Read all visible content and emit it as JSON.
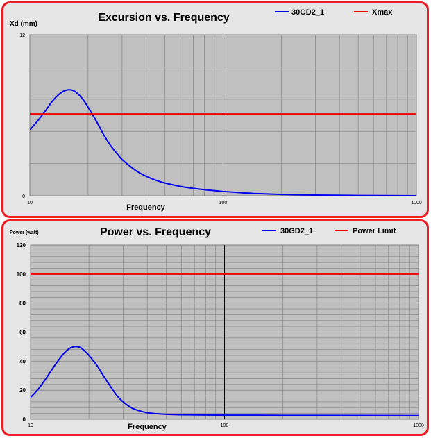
{
  "chart_data": [
    {
      "type": "line",
      "title": "Excursion vs. Frequency",
      "xlabel": "Frequency",
      "ylabel": "Xd (mm)",
      "xscale": "log",
      "xlim": [
        10,
        1000
      ],
      "ylim": [
        0,
        12
      ],
      "xticks": [
        "10",
        "100",
        "1000"
      ],
      "yticks": [
        "0",
        "12"
      ],
      "grid": true,
      "legend_position": "top-right",
      "series": [
        {
          "name": "30GD2_1",
          "color": "#0000ee",
          "x": [
            10,
            11,
            12,
            13,
            14,
            15,
            16,
            17,
            18,
            19,
            20,
            22,
            24,
            26,
            28,
            30,
            33,
            36,
            40,
            45,
            50,
            60,
            70,
            80,
            90,
            100,
            120,
            150,
            200,
            300,
            500,
            1000
          ],
          "y": [
            4.9,
            5.6,
            6.3,
            7.0,
            7.5,
            7.8,
            7.9,
            7.8,
            7.5,
            7.1,
            6.6,
            5.6,
            4.6,
            3.8,
            3.2,
            2.7,
            2.2,
            1.8,
            1.45,
            1.15,
            0.95,
            0.7,
            0.55,
            0.45,
            0.38,
            0.32,
            0.24,
            0.16,
            0.1,
            0.05,
            0.02,
            0.0
          ]
        },
        {
          "name": "Xmax",
          "color": "#ee0000",
          "x": [
            10,
            1000
          ],
          "y": [
            6.1,
            6.1
          ]
        }
      ]
    },
    {
      "type": "line",
      "title": "Power vs. Frequency",
      "xlabel": "Frequency",
      "ylabel": "Power (watt)",
      "xscale": "log",
      "xlim": [
        10,
        1000
      ],
      "ylim": [
        0,
        120
      ],
      "xticks": [
        "10",
        "100",
        "1000"
      ],
      "yticks": [
        "0",
        "20",
        "40",
        "60",
        "80",
        "100",
        "120"
      ],
      "grid": true,
      "legend_position": "top-right",
      "series": [
        {
          "name": "30GD2_1",
          "color": "#0000ee",
          "x": [
            10,
            11,
            12,
            13,
            14,
            15,
            16,
            17,
            18,
            19,
            20,
            22,
            24,
            26,
            28,
            30,
            33,
            36,
            40,
            45,
            50,
            60,
            70,
            80,
            100,
            150,
            200,
            300,
            500,
            1000
          ],
          "y": [
            15,
            21,
            28,
            35,
            41,
            46,
            49,
            50,
            49.5,
            47,
            44,
            37,
            29,
            22,
            16,
            12,
            8,
            6,
            4.5,
            3.8,
            3.4,
            3.1,
            3.0,
            2.9,
            2.8,
            2.8,
            2.7,
            2.7,
            2.6,
            2.5
          ]
        },
        {
          "name": "Power Limit",
          "color": "#ee0000",
          "x": [
            10,
            1000
          ],
          "y": [
            100,
            100
          ]
        }
      ]
    }
  ]
}
